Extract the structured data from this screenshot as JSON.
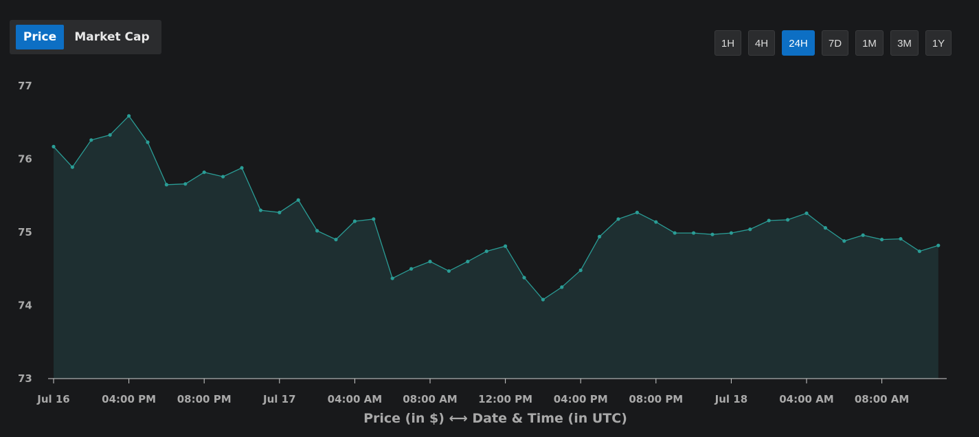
{
  "tabs": [
    {
      "label": "Price",
      "active": true
    },
    {
      "label": "Market Cap",
      "active": false
    }
  ],
  "timeframes": [
    {
      "label": "1H",
      "active": false
    },
    {
      "label": "4H",
      "active": false
    },
    {
      "label": "24H",
      "active": true
    },
    {
      "label": "7D",
      "active": false
    },
    {
      "label": "1M",
      "active": false
    },
    {
      "label": "3M",
      "active": false
    },
    {
      "label": "1Y",
      "active": false
    }
  ],
  "colors": {
    "accent": "#0d6fc4",
    "line": "#2a9d96",
    "area": "#1e2f31",
    "background": "#18191b"
  },
  "chart_data": {
    "type": "area",
    "xlabel": "Price (in $) ⟷ Date & Time (in UTC)",
    "ylabel": "",
    "ylim": [
      73,
      77
    ],
    "yticks": [
      "73",
      "74",
      "75",
      "76",
      "77"
    ],
    "xtick_labels": [
      "Jul 16",
      "04:00 PM",
      "08:00 PM",
      "Jul 17",
      "04:00 AM",
      "08:00 AM",
      "12:00 PM",
      "04:00 PM",
      "08:00 PM",
      "Jul 18",
      "04:00 AM",
      "08:00 AM"
    ],
    "x_interval_hours": 1,
    "grid": false,
    "series": [
      {
        "values": [
          76.17,
          75.89,
          76.26,
          76.33,
          76.59,
          76.23,
          75.65,
          75.66,
          75.82,
          75.76,
          75.88,
          75.3,
          75.27,
          75.44,
          75.02,
          74.9,
          75.15,
          75.18,
          74.37,
          74.5,
          74.6,
          74.47,
          74.6,
          74.74,
          74.81,
          74.38,
          74.08,
          74.25,
          74.48,
          74.94,
          75.18,
          75.27,
          75.14,
          74.99,
          74.99,
          74.97,
          74.99,
          75.04,
          75.16,
          75.17,
          75.26,
          75.06,
          74.88,
          74.96,
          74.9,
          74.91,
          74.74,
          74.82
        ]
      }
    ]
  }
}
